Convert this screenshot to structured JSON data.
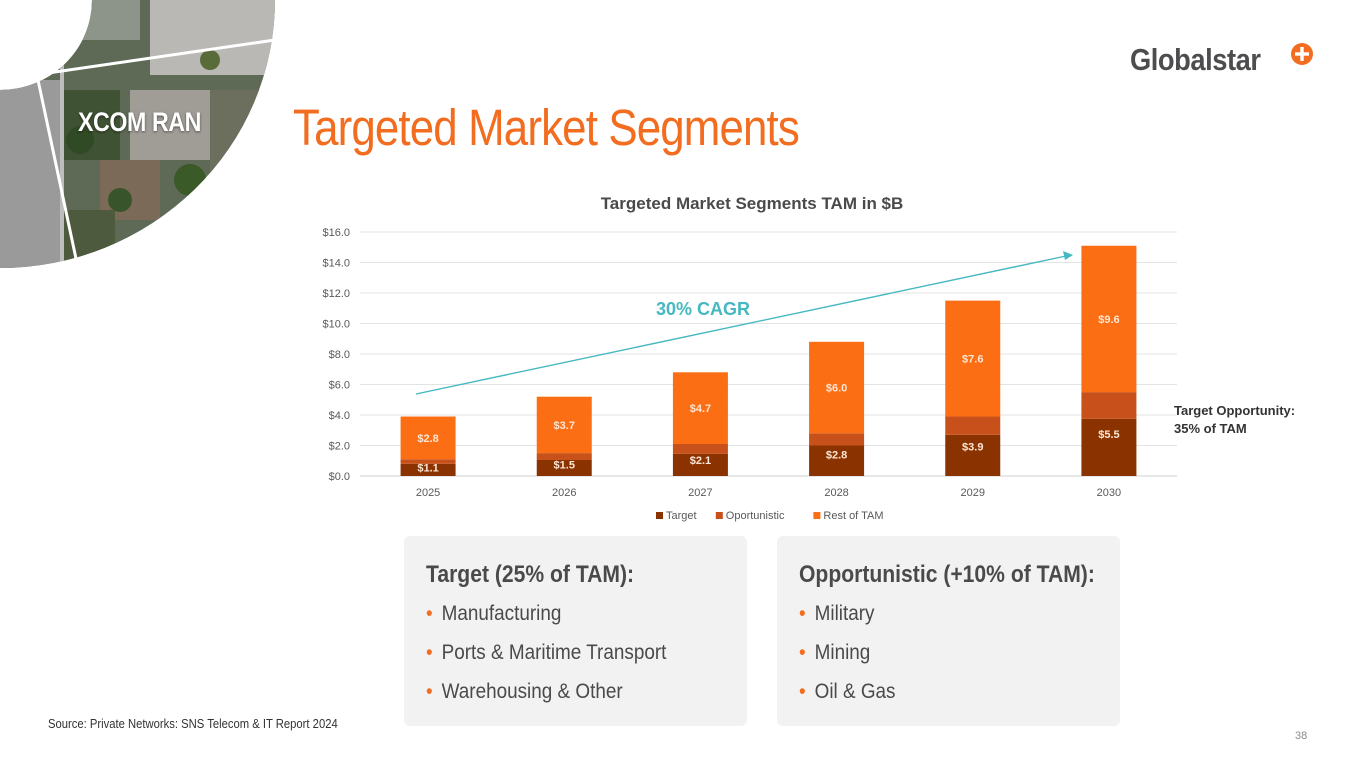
{
  "section_label": "XCOM RAN",
  "page_title": "Targeted Market Segments",
  "logo": {
    "text": "Globalstar",
    "brand_color": "#f26d1f"
  },
  "chart_data": {
    "type": "bar",
    "stacked": true,
    "title": "Targeted Market Segments TAM in $B",
    "categories": [
      "2025",
      "2026",
      "2027",
      "2028",
      "2029",
      "2030"
    ],
    "series": [
      {
        "name": "Target",
        "color": "#8b3300",
        "values": [
          0.8,
          1.05,
          1.45,
          2.0,
          2.7,
          3.75
        ]
      },
      {
        "name": "Oportunistic",
        "color": "#c8501a",
        "values": [
          0.3,
          0.45,
          0.65,
          0.8,
          1.2,
          1.75
        ]
      },
      {
        "name": "Rest of TAM",
        "color": "#fb6e14",
        "values": [
          2.8,
          3.7,
          4.7,
          6.0,
          7.6,
          9.6
        ]
      }
    ],
    "bar_labels": {
      "target_plus_oportunistic": [
        "$1.1",
        "$1.5",
        "$2.1",
        "$2.8",
        "$3.9",
        "$5.5"
      ],
      "rest_of_tam": [
        "$2.8",
        "$3.7",
        "$4.7",
        "$6.0",
        "$7.6",
        "$9.6"
      ]
    },
    "y_ticks": [
      "$0.0",
      "$2.0",
      "$4.0",
      "$6.0",
      "$8.0",
      "$10.0",
      "$12.0",
      "$14.0",
      "$16.0"
    ],
    "ylim": [
      0,
      16
    ],
    "grid": true,
    "legend_position": "bottom",
    "annotations": {
      "cagr": {
        "text": "30% CAGR",
        "color": "#45b8c1"
      },
      "target_opportunity": [
        "Target Opportunity:",
        "35% of TAM"
      ]
    }
  },
  "cards": {
    "target": {
      "title": "Target (25% of TAM):",
      "items": [
        "Manufacturing",
        "Ports & Maritime Transport",
        "Warehousing & Other"
      ]
    },
    "opportunistic": {
      "title": "Opportunistic (+10% of TAM):",
      "items": [
        "Military",
        "Mining",
        "Oil & Gas"
      ]
    }
  },
  "source": "Source: Private Networks: SNS Telecom & IT Report 2024",
  "page_number": "38"
}
